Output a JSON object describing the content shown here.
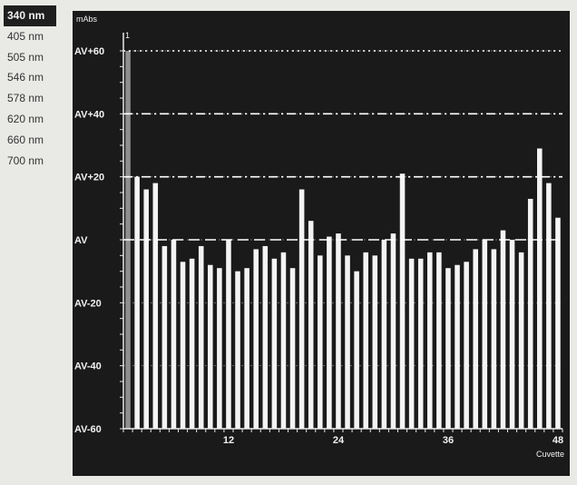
{
  "wavelengths": {
    "items": [
      "340 nm",
      "405 nm",
      "505 nm",
      "546 nm",
      "578 nm",
      "620 nm",
      "660 nm",
      "700 nm"
    ],
    "selected_index": 0
  },
  "chart_data": {
    "type": "bar",
    "ylabel": "mAbs",
    "xlabel": "Cuvette",
    "y_tick_labels": [
      "AV+60",
      "AV+40",
      "AV+20",
      "AV",
      "AV-20",
      "AV-40",
      "AV-60"
    ],
    "y_tick_values": [
      60,
      40,
      20,
      0,
      -20,
      -40,
      -60
    ],
    "ylim": [
      -60,
      60
    ],
    "x_tick_labels": [
      "12",
      "24",
      "36",
      "48"
    ],
    "x_tick_values": [
      12,
      24,
      36,
      48
    ],
    "xlim": [
      0,
      48
    ],
    "reference_lines": [
      {
        "label": "AV+60",
        "value": 60,
        "style": "dotted"
      },
      {
        "label": "AV+40",
        "value": 40,
        "style": "dash-dot"
      },
      {
        "label": "AV+20",
        "value": 20,
        "style": "dash-dot"
      },
      {
        "label": "AV",
        "value": 0,
        "style": "dashed"
      }
    ],
    "marker_label": "1",
    "highlighted_cuvette": 1,
    "categories": [
      1,
      2,
      3,
      4,
      5,
      6,
      7,
      8,
      9,
      10,
      11,
      12,
      13,
      14,
      15,
      16,
      17,
      18,
      19,
      20,
      21,
      22,
      23,
      24,
      25,
      26,
      27,
      28,
      29,
      30,
      31,
      32,
      33,
      34,
      35,
      36,
      37,
      38,
      39,
      40,
      41,
      42,
      43,
      44,
      45,
      46,
      47,
      48
    ],
    "values": [
      60,
      20,
      16,
      18,
      -2,
      0,
      -7,
      -6,
      -2,
      -8,
      -9,
      0,
      -10,
      -9,
      -3,
      -2,
      -6,
      -4,
      -9,
      16,
      6,
      -5,
      1,
      2,
      -5,
      -10,
      -4,
      -5,
      0,
      2,
      21,
      -6,
      -6,
      -4,
      -4,
      -9,
      -8,
      -7,
      -3,
      0,
      -3,
      3,
      0,
      -4,
      13,
      29,
      18,
      7
    ],
    "grid": true
  }
}
